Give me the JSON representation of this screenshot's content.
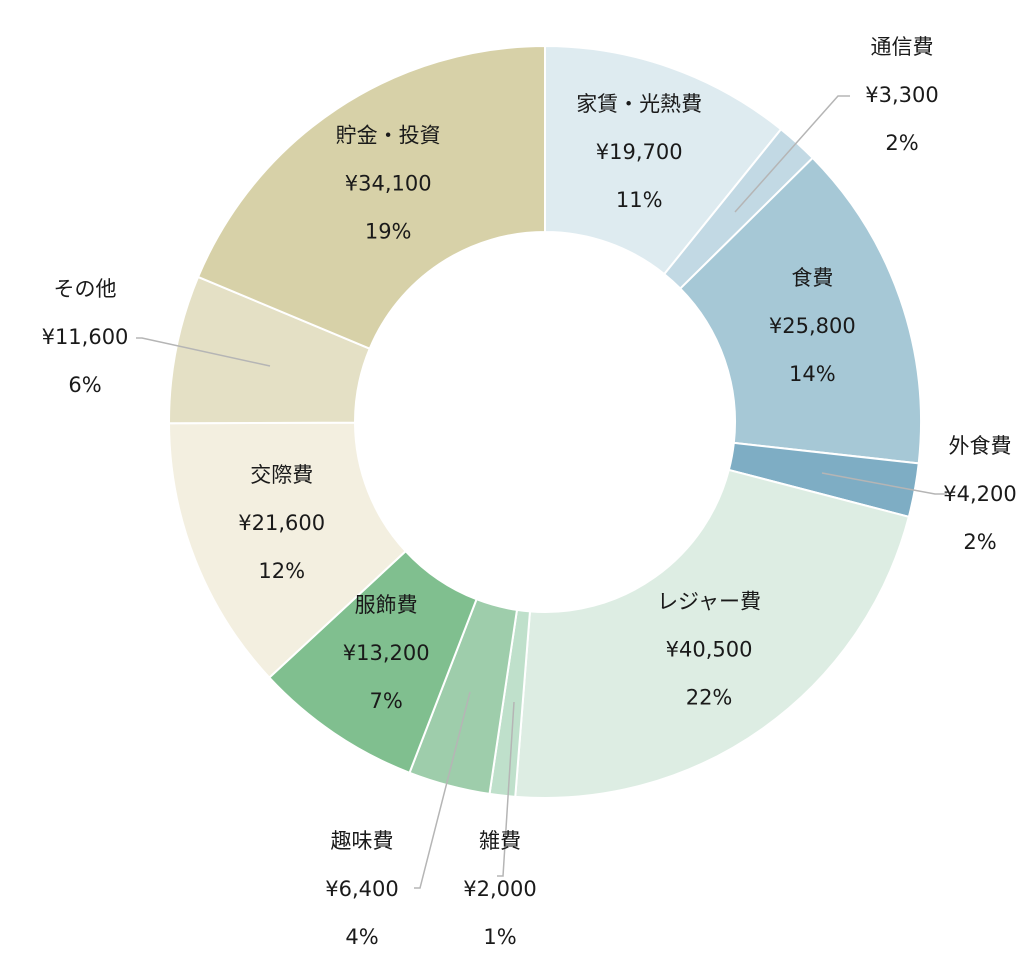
{
  "chart_data": {
    "type": "pie",
    "donut": true,
    "title": "",
    "legend": "none",
    "categories": [
      "家賃・光熱費",
      "通信費",
      "食費",
      "外食費",
      "レジャー費",
      "雑費",
      "趣味費",
      "服飾費",
      "交際費",
      "その他",
      "貯金・投資"
    ],
    "values": [
      19700,
      3300,
      25800,
      4200,
      40500,
      2000,
      6400,
      13200,
      21600,
      11600,
      34100
    ],
    "value_labels": [
      "¥19,700",
      "¥3,300",
      "¥25,800",
      "¥4,200",
      "¥40,500",
      "¥2,000",
      "¥6,400",
      "¥13,200",
      "¥21,600",
      "¥11,600",
      "¥34,100"
    ],
    "percent_labels": [
      "11%",
      "2%",
      "14%",
      "2%",
      "22%",
      "1%",
      "4%",
      "7%",
      "12%",
      "6%",
      "19%"
    ],
    "colors": [
      "#deebf0",
      "#c2d9e4",
      "#a6c8d6",
      "#7eadc4",
      "#ddede3",
      "#bfe0cb",
      "#9ecdab",
      "#80bf8f",
      "#f3efe0",
      "#e4e0c5",
      "#d7d1a8"
    ]
  }
}
